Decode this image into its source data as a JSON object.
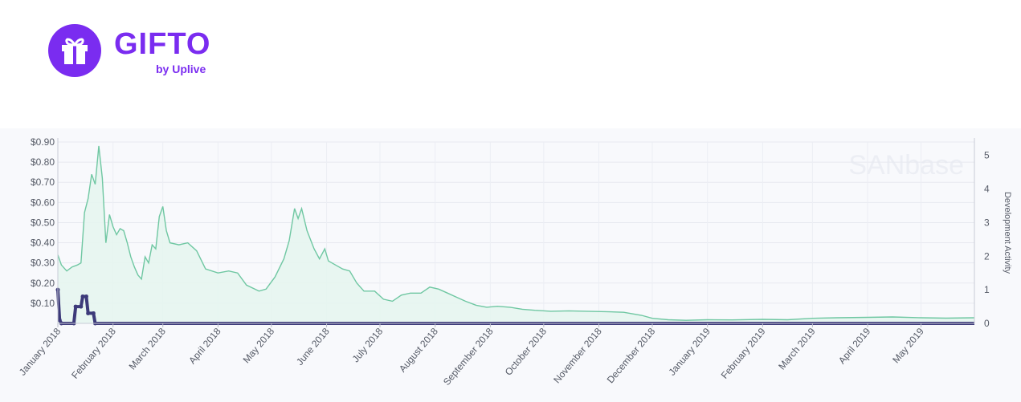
{
  "logo": {
    "icon": "gift-icon",
    "title": "GIFTO",
    "subtitle": "by Uplive",
    "color": "#7a2cf0"
  },
  "chart_data": {
    "type": "line",
    "watermark": "SANbase",
    "y_right_label": "Development Activity",
    "x_labels": [
      "January 2018",
      "February 2018",
      "March 2018",
      "April 2018",
      "May 2018",
      "June 2018",
      "July 2018",
      "August 2018",
      "September 2018",
      "October 2018",
      "November 2018",
      "December 2018",
      "January 2019",
      "February 2019",
      "March 2019",
      "April 2019",
      "May 2019"
    ],
    "y_left_ticks": [
      "$0.10",
      "$0.20",
      "$0.30",
      "$0.40",
      "$0.50",
      "$0.60",
      "$0.70",
      "$0.80",
      "$0.90"
    ],
    "y_left_range": [
      0,
      0.9
    ],
    "y_right_ticks": [
      "0",
      "1",
      "2",
      "3",
      "4",
      "5"
    ],
    "y_right_range": [
      0,
      5.4
    ],
    "grid": true,
    "series": [
      {
        "key": "price",
        "color": "#6fc7a2",
        "fill": "#e6f5ef",
        "points": [
          [
            "2018-01-01",
            0.34
          ],
          [
            "2018-01-03",
            0.29
          ],
          [
            "2018-01-06",
            0.26
          ],
          [
            "2018-01-09",
            0.28
          ],
          [
            "2018-01-12",
            0.29
          ],
          [
            "2018-01-14",
            0.3
          ],
          [
            "2018-01-16",
            0.55
          ],
          [
            "2018-01-18",
            0.62
          ],
          [
            "2018-01-20",
            0.74
          ],
          [
            "2018-01-22",
            0.69
          ],
          [
            "2018-01-24",
            0.88
          ],
          [
            "2018-01-26",
            0.72
          ],
          [
            "2018-01-28",
            0.4
          ],
          [
            "2018-01-30",
            0.54
          ],
          [
            "2018-02-01",
            0.48
          ],
          [
            "2018-02-03",
            0.44
          ],
          [
            "2018-02-05",
            0.47
          ],
          [
            "2018-02-07",
            0.46
          ],
          [
            "2018-02-09",
            0.4
          ],
          [
            "2018-02-11",
            0.33
          ],
          [
            "2018-02-13",
            0.28
          ],
          [
            "2018-02-15",
            0.24
          ],
          [
            "2018-02-17",
            0.22
          ],
          [
            "2018-02-19",
            0.33
          ],
          [
            "2018-02-21",
            0.3
          ],
          [
            "2018-02-23",
            0.39
          ],
          [
            "2018-02-25",
            0.37
          ],
          [
            "2018-02-27",
            0.53
          ],
          [
            "2018-03-01",
            0.58
          ],
          [
            "2018-03-03",
            0.46
          ],
          [
            "2018-03-05",
            0.4
          ],
          [
            "2018-03-10",
            0.39
          ],
          [
            "2018-03-15",
            0.4
          ],
          [
            "2018-03-20",
            0.36
          ],
          [
            "2018-03-25",
            0.27
          ],
          [
            "2018-04-01",
            0.25
          ],
          [
            "2018-04-07",
            0.26
          ],
          [
            "2018-04-12",
            0.25
          ],
          [
            "2018-04-17",
            0.19
          ],
          [
            "2018-04-24",
            0.16
          ],
          [
            "2018-04-28",
            0.17
          ],
          [
            "2018-05-03",
            0.23
          ],
          [
            "2018-05-08",
            0.32
          ],
          [
            "2018-05-11",
            0.41
          ],
          [
            "2018-05-14",
            0.57
          ],
          [
            "2018-05-16",
            0.52
          ],
          [
            "2018-05-18",
            0.57
          ],
          [
            "2018-05-21",
            0.46
          ],
          [
            "2018-05-25",
            0.37
          ],
          [
            "2018-05-28",
            0.32
          ],
          [
            "2018-05-31",
            0.37
          ],
          [
            "2018-06-02",
            0.31
          ],
          [
            "2018-06-06",
            0.29
          ],
          [
            "2018-06-10",
            0.27
          ],
          [
            "2018-06-14",
            0.26
          ],
          [
            "2018-06-18",
            0.2
          ],
          [
            "2018-06-22",
            0.16
          ],
          [
            "2018-06-28",
            0.16
          ],
          [
            "2018-07-03",
            0.12
          ],
          [
            "2018-07-08",
            0.11
          ],
          [
            "2018-07-13",
            0.14
          ],
          [
            "2018-07-18",
            0.15
          ],
          [
            "2018-07-24",
            0.15
          ],
          [
            "2018-07-29",
            0.18
          ],
          [
            "2018-08-03",
            0.17
          ],
          [
            "2018-08-08",
            0.15
          ],
          [
            "2018-08-13",
            0.13
          ],
          [
            "2018-08-18",
            0.11
          ],
          [
            "2018-08-24",
            0.09
          ],
          [
            "2018-08-30",
            0.08
          ],
          [
            "2018-09-05",
            0.085
          ],
          [
            "2018-09-12",
            0.08
          ],
          [
            "2018-09-19",
            0.07
          ],
          [
            "2018-09-26",
            0.065
          ],
          [
            "2018-10-05",
            0.06
          ],
          [
            "2018-10-15",
            0.062
          ],
          [
            "2018-10-25",
            0.06
          ],
          [
            "2018-11-05",
            0.058
          ],
          [
            "2018-11-15",
            0.055
          ],
          [
            "2018-11-25",
            0.04
          ],
          [
            "2018-12-01",
            0.025
          ],
          [
            "2018-12-10",
            0.018
          ],
          [
            "2018-12-20",
            0.015
          ],
          [
            "2019-01-01",
            0.018
          ],
          [
            "2019-01-15",
            0.017
          ],
          [
            "2019-02-01",
            0.02
          ],
          [
            "2019-02-15",
            0.018
          ],
          [
            "2019-03-01",
            0.025
          ],
          [
            "2019-03-15",
            0.028
          ],
          [
            "2019-04-01",
            0.03
          ],
          [
            "2019-04-15",
            0.032
          ],
          [
            "2019-05-01",
            0.028
          ],
          [
            "2019-05-15",
            0.026
          ],
          [
            "2019-05-31",
            0.028
          ]
        ]
      },
      {
        "key": "development_activity",
        "color": "#3d3a7a",
        "points": [
          [
            "2018-01-01",
            1.0
          ],
          [
            "2018-01-02",
            0.1
          ],
          [
            "2018-01-03",
            0.0
          ],
          [
            "2018-01-10",
            0.0
          ],
          [
            "2018-01-11",
            0.5
          ],
          [
            "2018-01-14",
            0.5
          ],
          [
            "2018-01-15",
            0.8
          ],
          [
            "2018-01-17",
            0.8
          ],
          [
            "2018-01-18",
            0.3
          ],
          [
            "2018-01-21",
            0.3
          ],
          [
            "2018-01-22",
            0.0
          ],
          [
            "2019-05-31",
            0.0
          ]
        ]
      }
    ]
  }
}
